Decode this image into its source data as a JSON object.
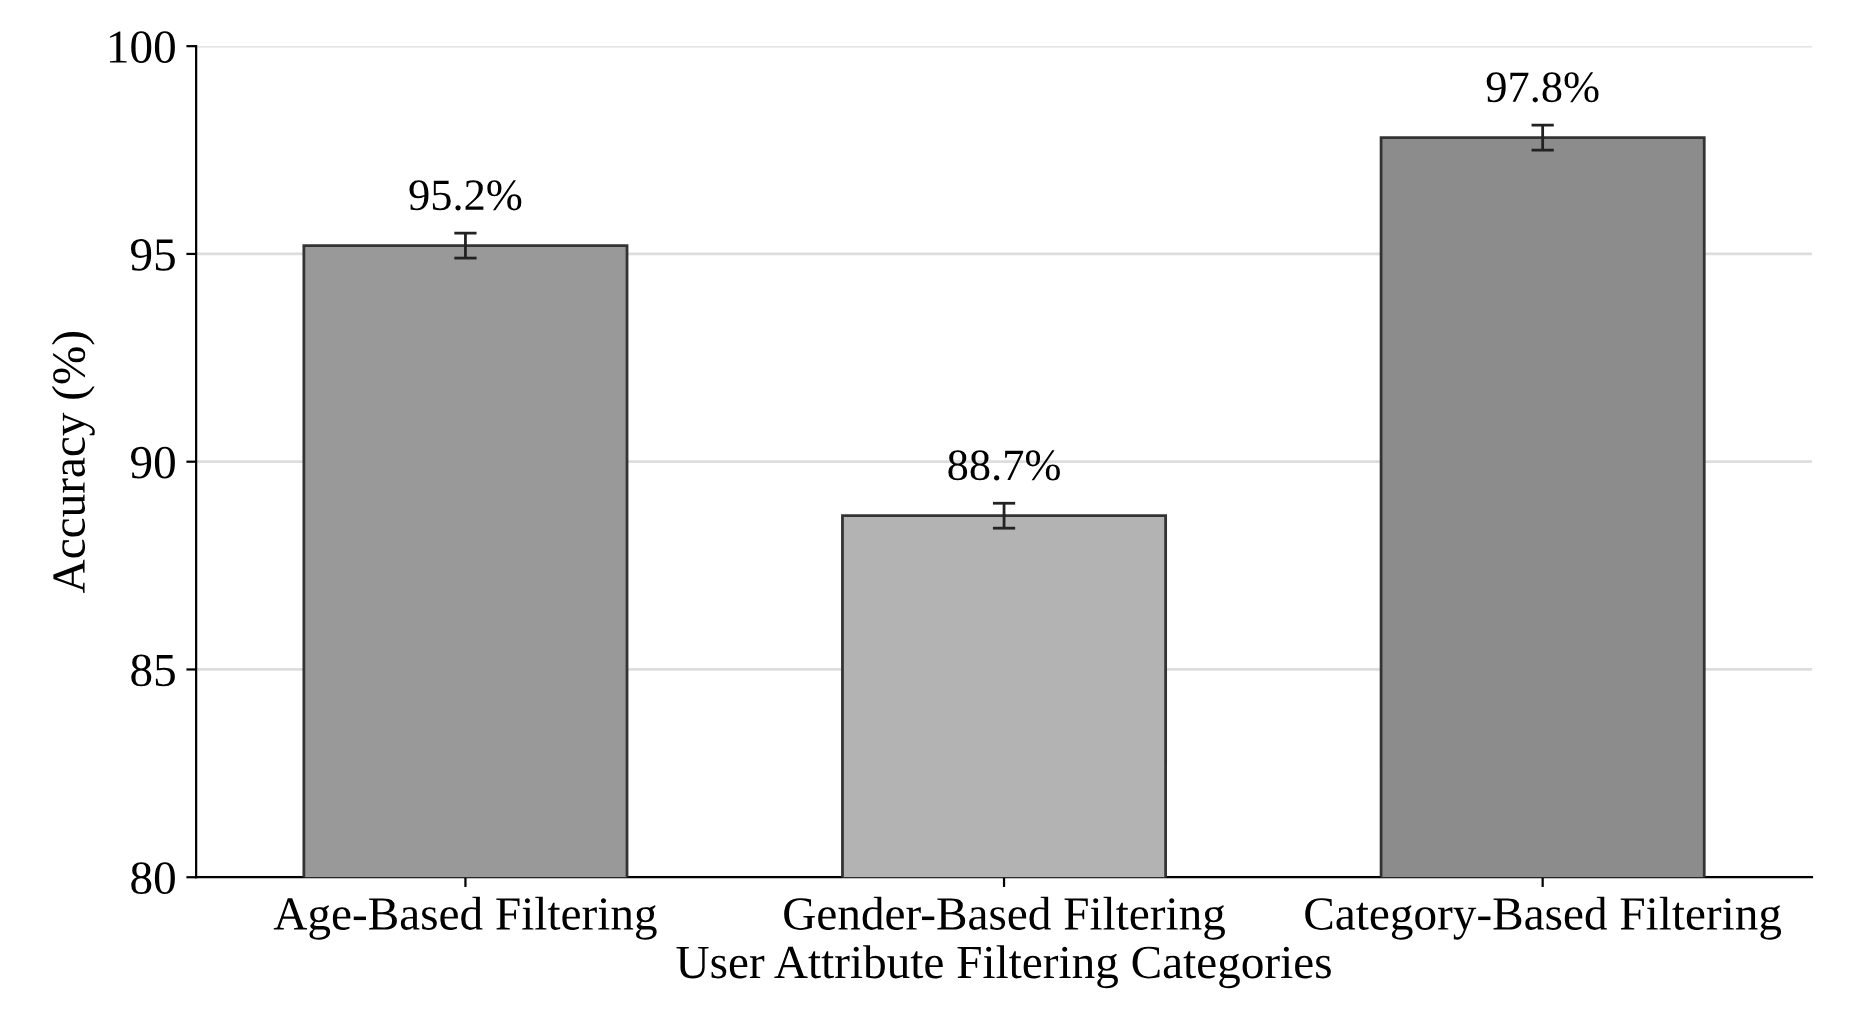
{
  "chart_data": {
    "type": "bar",
    "xlabel": "User Attribute Filtering Categories",
    "ylabel": "Accuracy (%)",
    "categories": [
      "Age-Based Filtering",
      "Gender-Based Filtering",
      "Category-Based Filtering"
    ],
    "values": [
      95.2,
      88.7,
      97.8
    ],
    "colors": [
      "#999999",
      "#b3b3b3",
      "#8c8c8c"
    ],
    "errors": [
      0.3,
      0.3,
      0.3
    ],
    "value_labels": [
      "95.2%",
      "88.7%",
      "97.8%"
    ],
    "ylim": [
      80,
      100
    ],
    "yticks": [
      80,
      85,
      90,
      95,
      100
    ],
    "grid": "y"
  }
}
